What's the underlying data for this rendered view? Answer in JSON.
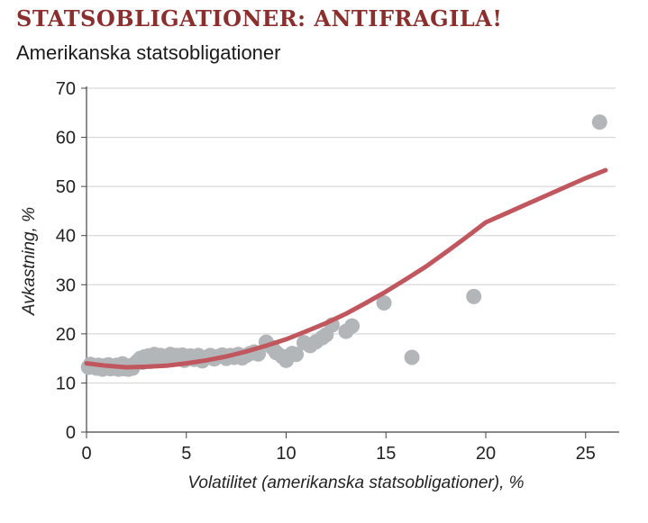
{
  "title": "STATSOBLIGATIONER: ANTIFRAGILA!",
  "subtitle": "Amerikanska statsobligationer",
  "colors": {
    "title": "#8b2e2e",
    "points": "#b3b6b8",
    "curve": "#c0575f",
    "grid": "#cfcfcf"
  },
  "chart_data": {
    "type": "scatter",
    "xlabel": "Volatilitet (amerikanska statsobligationer), %",
    "ylabel": "Avkastning, %",
    "xlim": [
      0,
      26.5
    ],
    "ylim": [
      0,
      70
    ],
    "xticks": [
      "0",
      "5",
      "10",
      "15",
      "20",
      "25"
    ],
    "yticks": [
      "0",
      "10",
      "20",
      "30",
      "40",
      "50",
      "60",
      "70"
    ],
    "grid": "horizontal",
    "points": [
      [
        0.1,
        13.2
      ],
      [
        0.2,
        13.8
      ],
      [
        0.3,
        13.5
      ],
      [
        0.5,
        13.0
      ],
      [
        0.6,
        13.6
      ],
      [
        0.7,
        13.3
      ],
      [
        0.8,
        12.8
      ],
      [
        0.9,
        13.5
      ],
      [
        1.0,
        13.1
      ],
      [
        1.1,
        13.7
      ],
      [
        1.2,
        12.9
      ],
      [
        1.3,
        13.4
      ],
      [
        1.4,
        13.0
      ],
      [
        1.5,
        13.6
      ],
      [
        1.6,
        12.8
      ],
      [
        1.7,
        13.2
      ],
      [
        1.8,
        13.9
      ],
      [
        1.9,
        12.9
      ],
      [
        2.0,
        13.3
      ],
      [
        2.1,
        12.8
      ],
      [
        2.2,
        13.5
      ],
      [
        2.3,
        13.0
      ],
      [
        2.4,
        13.8
      ],
      [
        2.5,
        14.2
      ],
      [
        2.6,
        14.6
      ],
      [
        2.7,
        15.0
      ],
      [
        2.8,
        14.2
      ],
      [
        2.9,
        15.3
      ],
      [
        3.0,
        14.8
      ],
      [
        3.1,
        15.5
      ],
      [
        3.2,
        14.4
      ],
      [
        3.3,
        15.2
      ],
      [
        3.4,
        15.8
      ],
      [
        3.5,
        14.6
      ],
      [
        3.6,
        15.1
      ],
      [
        3.7,
        15.6
      ],
      [
        3.8,
        14.9
      ],
      [
        3.9,
        15.4
      ],
      [
        4.0,
        14.7
      ],
      [
        4.1,
        15.2
      ],
      [
        4.2,
        15.8
      ],
      [
        4.3,
        14.8
      ],
      [
        4.4,
        15.3
      ],
      [
        4.5,
        15.6
      ],
      [
        4.6,
        14.9
      ],
      [
        4.7,
        15.2
      ],
      [
        4.8,
        15.7
      ],
      [
        4.9,
        14.6
      ],
      [
        5.0,
        15.0
      ],
      [
        5.2,
        15.5
      ],
      [
        5.4,
        14.8
      ],
      [
        5.6,
        15.6
      ],
      [
        5.8,
        14.5
      ],
      [
        6.0,
        15.2
      ],
      [
        6.2,
        15.6
      ],
      [
        6.4,
        14.9
      ],
      [
        6.6,
        15.4
      ],
      [
        6.8,
        15.7
      ],
      [
        7.0,
        15.0
      ],
      [
        7.2,
        15.6
      ],
      [
        7.4,
        15.2
      ],
      [
        7.6,
        15.8
      ],
      [
        7.8,
        15.1
      ],
      [
        8.0,
        15.6
      ],
      [
        8.2,
        16.0
      ],
      [
        8.4,
        16.3
      ],
      [
        8.6,
        15.9
      ],
      [
        9.0,
        18.3
      ],
      [
        9.3,
        17.2
      ],
      [
        9.5,
        16.2
      ],
      [
        9.8,
        15.4
      ],
      [
        10.0,
        14.6
      ],
      [
        10.3,
        16.0
      ],
      [
        10.5,
        15.8
      ],
      [
        10.9,
        18.2
      ],
      [
        11.2,
        17.6
      ],
      [
        11.5,
        18.4
      ],
      [
        11.8,
        19.2
      ],
      [
        12.0,
        19.8
      ],
      [
        12.3,
        21.8
      ],
      [
        13.0,
        20.5
      ],
      [
        13.3,
        21.6
      ],
      [
        14.9,
        26.3
      ],
      [
        16.3,
        15.2
      ],
      [
        19.4,
        27.6
      ],
      [
        25.7,
        63.1
      ]
    ],
    "fit_curve": {
      "x": [
        0,
        1,
        2,
        3,
        4,
        5,
        6,
        7,
        8,
        9,
        10,
        11,
        12,
        13,
        14,
        15,
        16,
        17,
        18,
        19,
        20,
        21,
        22,
        23,
        24,
        25,
        26
      ],
      "y": [
        14.0,
        13.5,
        13.2,
        13.3,
        13.5,
        14.0,
        14.6,
        15.4,
        16.4,
        17.6,
        18.9,
        20.5,
        22.2,
        24.1,
        26.3,
        28.6,
        31.1,
        33.7,
        36.6,
        39.6,
        42.7,
        44.5,
        46.3,
        48.1,
        49.9,
        51.7,
        53.3
      ]
    }
  }
}
